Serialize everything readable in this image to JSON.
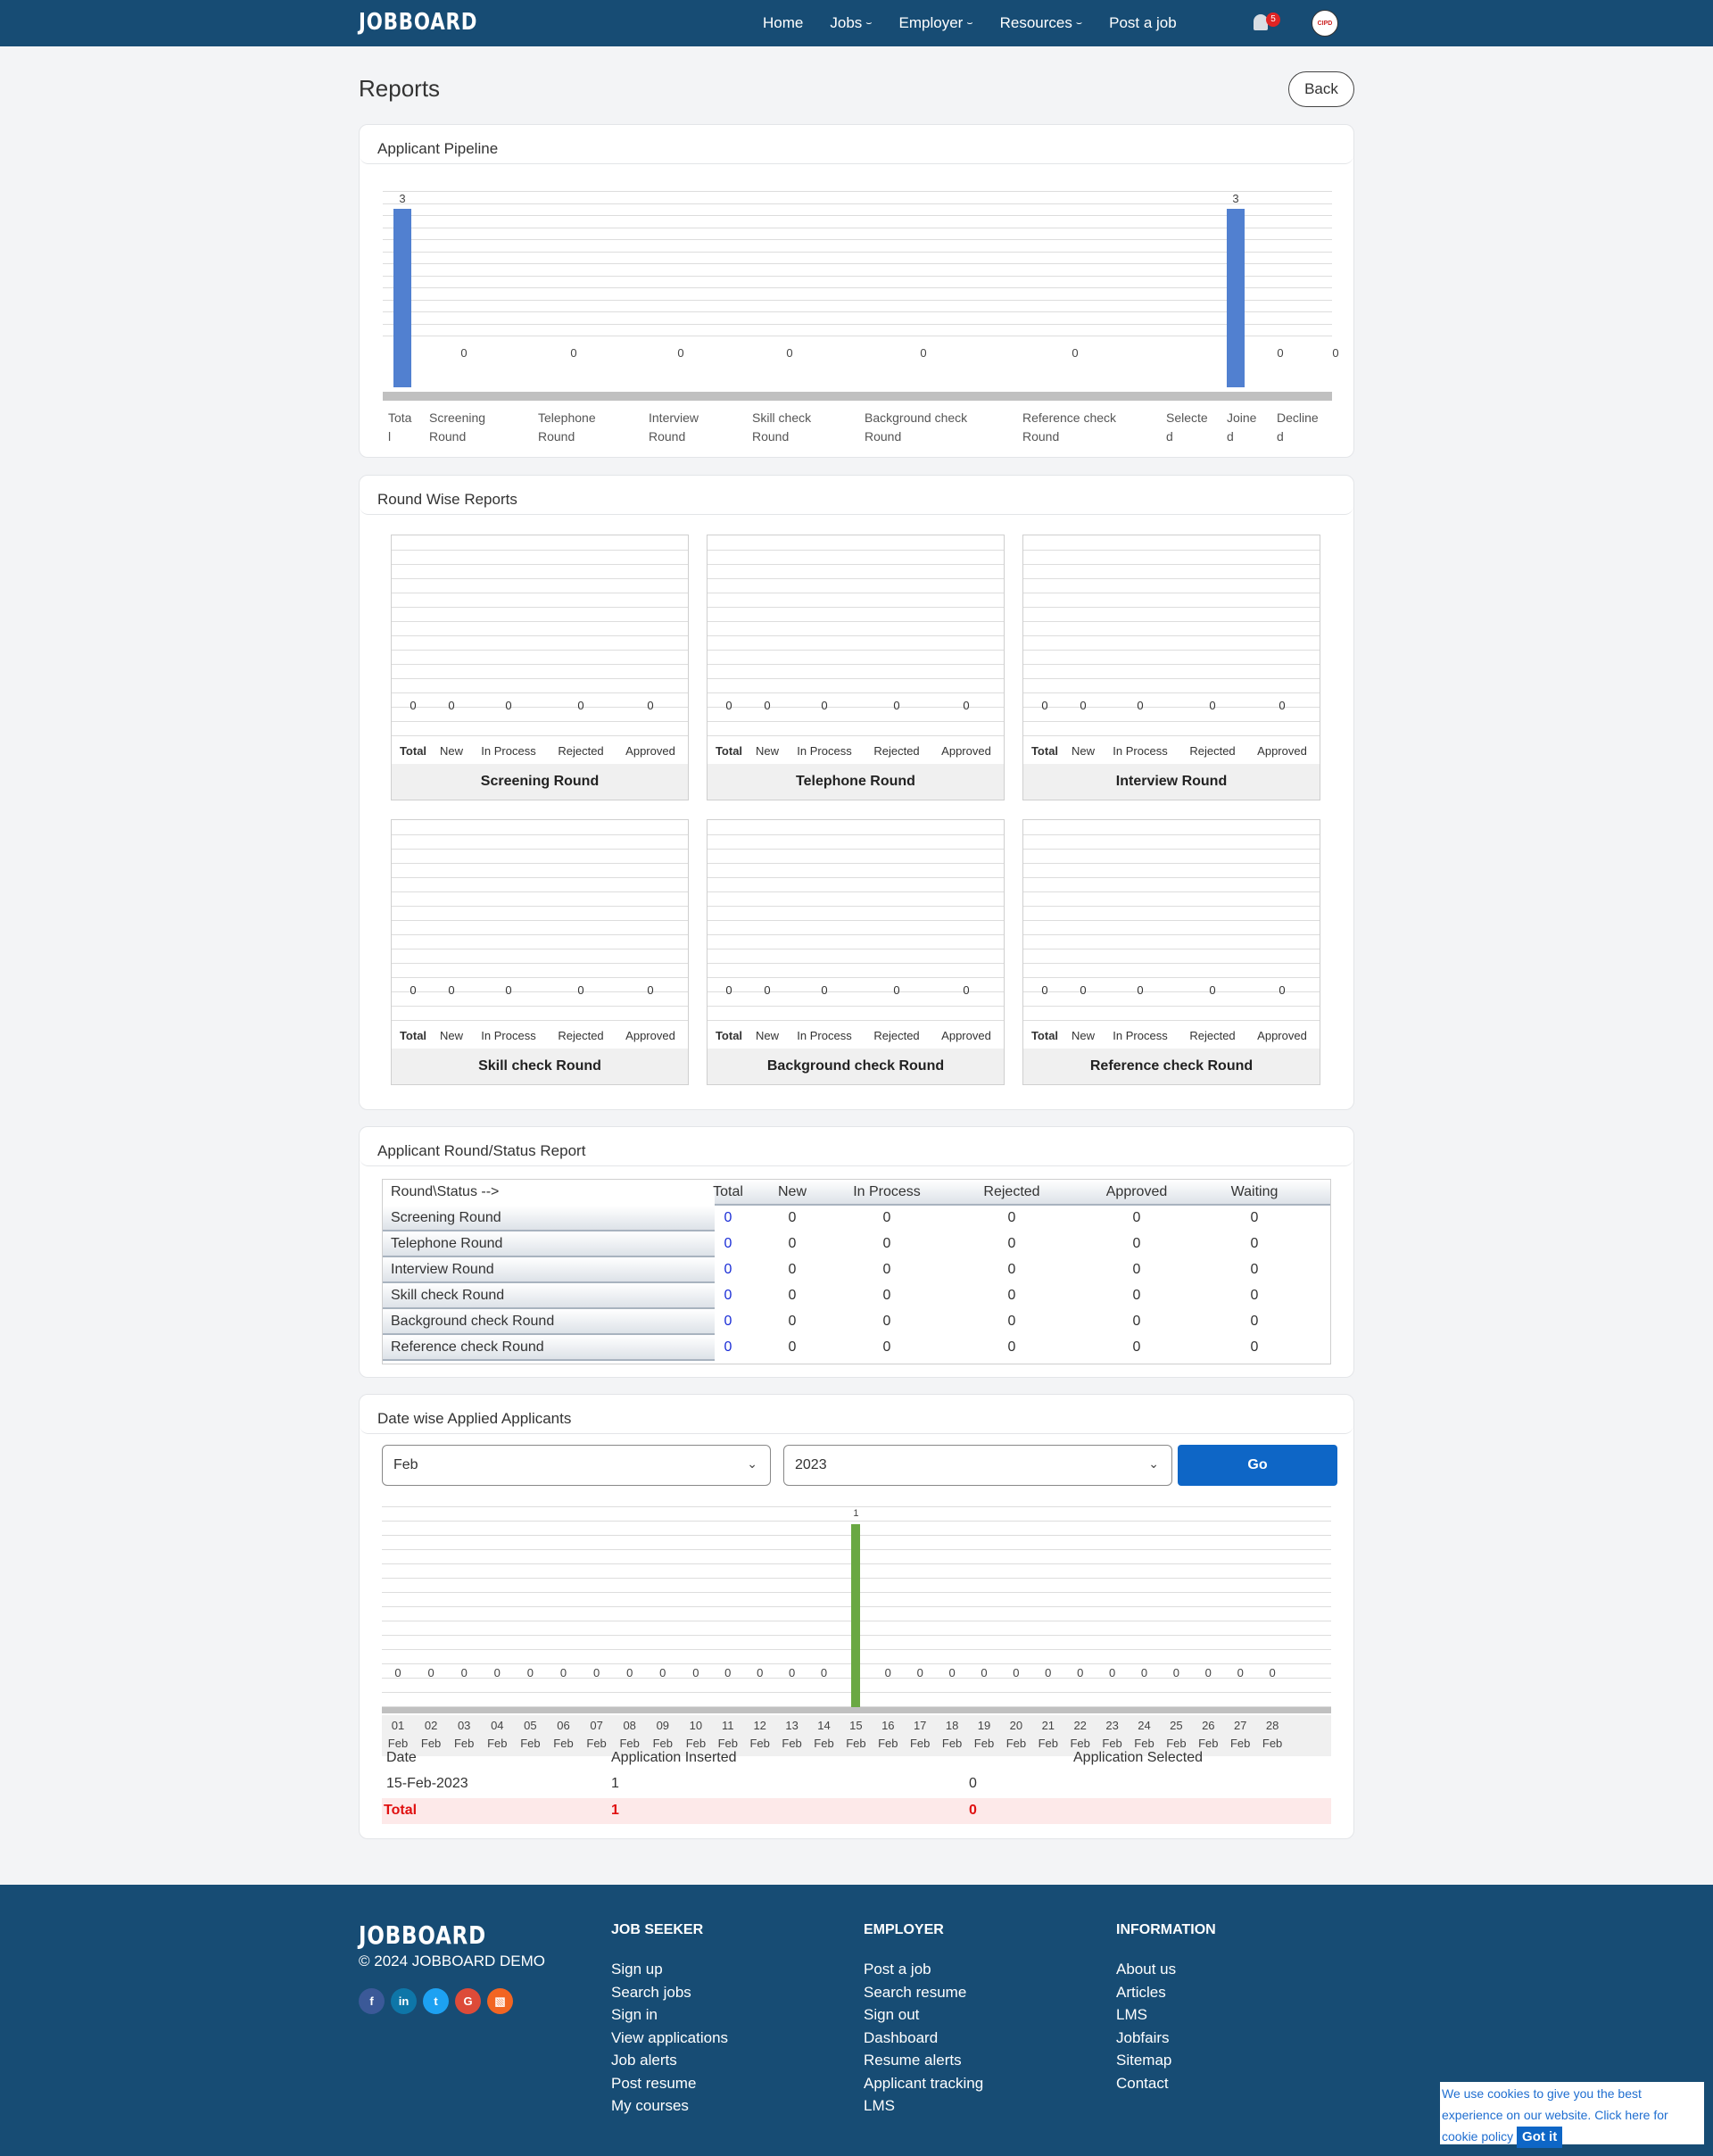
{
  "header": {
    "logo": "JOBBOARD",
    "nav": [
      {
        "label": "Home",
        "dropdown": false
      },
      {
        "label": "Jobs",
        "dropdown": true
      },
      {
        "label": "Employer",
        "dropdown": true
      },
      {
        "label": "Resources",
        "dropdown": true
      },
      {
        "label": "Post a job",
        "dropdown": false
      }
    ],
    "notification_count": "5",
    "avatar_text": "CIPD"
  },
  "page": {
    "title": "Reports",
    "back_label": "Back"
  },
  "pipeline": {
    "title": "Applicant Pipeline",
    "labels": [
      "Tota\nl",
      "Screening\nRound",
      "Telephone\nRound",
      "Interview\nRound",
      "Skill check\nRound",
      "Background check\nRound",
      "Reference check\nRound",
      "Selecte\nd",
      "Joine\nd",
      "Decline\nd"
    ]
  },
  "round_wise": {
    "title": "Round Wise Reports",
    "categories": [
      "Total",
      "New",
      "In Process",
      "Rejected",
      "Approved"
    ],
    "charts": [
      {
        "name": "Screening Round",
        "values": [
          "0",
          "0",
          "0",
          "0",
          "0"
        ]
      },
      {
        "name": "Telephone Round",
        "values": [
          "0",
          "0",
          "0",
          "0",
          "0"
        ]
      },
      {
        "name": "Interview Round",
        "values": [
          "0",
          "0",
          "0",
          "0",
          "0"
        ]
      },
      {
        "name": "Skill check Round",
        "values": [
          "0",
          "0",
          "0",
          "0",
          "0"
        ]
      },
      {
        "name": "Background check Round",
        "values": [
          "0",
          "0",
          "0",
          "0",
          "0"
        ]
      },
      {
        "name": "Reference check Round",
        "values": [
          "0",
          "0",
          "0",
          "0",
          "0"
        ]
      }
    ]
  },
  "status_report": {
    "title": "Applicant Round/Status Report",
    "corner": "Round\\Status -->",
    "columns": [
      "Total",
      "New",
      "In Process",
      "Rejected",
      "Approved",
      "Waiting"
    ],
    "rows": [
      {
        "round": "Screening Round",
        "values": [
          "0",
          "0",
          "0",
          "0",
          "0",
          "0"
        ]
      },
      {
        "round": "Telephone Round",
        "values": [
          "0",
          "0",
          "0",
          "0",
          "0",
          "0"
        ]
      },
      {
        "round": "Interview Round",
        "values": [
          "0",
          "0",
          "0",
          "0",
          "0",
          "0"
        ]
      },
      {
        "round": "Skill check Round",
        "values": [
          "0",
          "0",
          "0",
          "0",
          "0",
          "0"
        ]
      },
      {
        "round": "Background check Round",
        "values": [
          "0",
          "0",
          "0",
          "0",
          "0",
          "0"
        ]
      },
      {
        "round": "Reference check Round",
        "values": [
          "0",
          "0",
          "0",
          "0",
          "0",
          "0"
        ]
      }
    ]
  },
  "date_wise": {
    "title": "Date wise Applied Applicants",
    "month": "Feb",
    "year": "2023",
    "go_label": "Go",
    "table_headers": [
      "Date",
      "Application Inserted",
      "Application Selected"
    ],
    "rows": [
      {
        "date": "15-Feb-2023",
        "inserted": "1",
        "selected": "0"
      }
    ],
    "total": {
      "label": "Total",
      "inserted": "1",
      "selected": "0"
    }
  },
  "chart_data": [
    {
      "type": "bar",
      "title": "Applicant Pipeline",
      "categories": [
        "Total",
        "Screening Round",
        "Telephone Round",
        "Interview Round",
        "Skill check Round",
        "Background check Round",
        "Reference check Round",
        "Selected",
        "Joined",
        "Declined"
      ],
      "values": [
        3,
        0,
        0,
        0,
        0,
        0,
        0,
        3,
        0,
        0
      ],
      "colors": [
        "#5180d0",
        null,
        null,
        null,
        null,
        null,
        null,
        null,
        "#ee1c25",
        null
      ],
      "ylim": [
        0,
        3
      ],
      "grid": true
    },
    {
      "type": "bar",
      "title": "Screening Round",
      "categories": [
        "Total",
        "New",
        "In Process",
        "Rejected",
        "Approved"
      ],
      "values": [
        0,
        0,
        0,
        0,
        0
      ]
    },
    {
      "type": "bar",
      "title": "Telephone Round",
      "categories": [
        "Total",
        "New",
        "In Process",
        "Rejected",
        "Approved"
      ],
      "values": [
        0,
        0,
        0,
        0,
        0
      ]
    },
    {
      "type": "bar",
      "title": "Interview Round",
      "categories": [
        "Total",
        "New",
        "In Process",
        "Rejected",
        "Approved"
      ],
      "values": [
        0,
        0,
        0,
        0,
        0
      ]
    },
    {
      "type": "bar",
      "title": "Skill check Round",
      "categories": [
        "Total",
        "New",
        "In Process",
        "Rejected",
        "Approved"
      ],
      "values": [
        0,
        0,
        0,
        0,
        0
      ]
    },
    {
      "type": "bar",
      "title": "Background check Round",
      "categories": [
        "Total",
        "New",
        "In Process",
        "Rejected",
        "Approved"
      ],
      "values": [
        0,
        0,
        0,
        0,
        0
      ]
    },
    {
      "type": "bar",
      "title": "Reference check Round",
      "categories": [
        "Total",
        "New",
        "In Process",
        "Rejected",
        "Approved"
      ],
      "values": [
        0,
        0,
        0,
        0,
        0
      ]
    },
    {
      "type": "bar",
      "title": "Date wise Applied Applicants",
      "categories": [
        "01 Feb",
        "02 Feb",
        "03 Feb",
        "04 Feb",
        "05 Feb",
        "06 Feb",
        "07 Feb",
        "08 Feb",
        "09 Feb",
        "10 Feb",
        "11 Feb",
        "12 Feb",
        "13 Feb",
        "14 Feb",
        "15 Feb",
        "16 Feb",
        "17 Feb",
        "18 Feb",
        "19 Feb",
        "20 Feb",
        "21 Feb",
        "22 Feb",
        "23 Feb",
        "24 Feb",
        "25 Feb",
        "26 Feb",
        "27 Feb",
        "28 Feb"
      ],
      "values": [
        0,
        0,
        0,
        0,
        0,
        0,
        0,
        0,
        0,
        0,
        0,
        0,
        0,
        0,
        1,
        0,
        0,
        0,
        0,
        0,
        0,
        0,
        0,
        0,
        0,
        0,
        0,
        0
      ],
      "bar_color": "#6aa843",
      "ylim": [
        0,
        1
      ],
      "grid": true
    }
  ],
  "footer": {
    "logo": "JOBBOARD",
    "copyright": "© 2024 JOBBOARD DEMO",
    "social": [
      {
        "name": "facebook",
        "glyph": "f",
        "color": "#3b5998"
      },
      {
        "name": "linkedin",
        "glyph": "in",
        "color": "#0e76a8"
      },
      {
        "name": "twitter",
        "glyph": "t",
        "color": "#1da1f2"
      },
      {
        "name": "google",
        "glyph": "G",
        "color": "#dd4b39"
      },
      {
        "name": "rss",
        "glyph": "▧",
        "color": "#f26522"
      }
    ],
    "columns": [
      {
        "heading": "JOB SEEKER",
        "links": [
          "Sign up",
          "Search jobs",
          "Sign in",
          "View applications",
          "Job alerts",
          "Post resume",
          "My courses"
        ]
      },
      {
        "heading": "EMPLOYER",
        "links": [
          "Post a job",
          "Search resume",
          "Sign out",
          "Dashboard",
          "Resume alerts",
          "Applicant tracking",
          "LMS"
        ]
      },
      {
        "heading": "INFORMATION",
        "links": [
          "About us",
          "Articles",
          "LMS",
          "Jobfairs",
          "Sitemap",
          "Contact"
        ]
      }
    ]
  },
  "cookie": {
    "text": "We use cookies to give you the best experience on our website. Click here for cookie policy",
    "button": "Got it"
  }
}
